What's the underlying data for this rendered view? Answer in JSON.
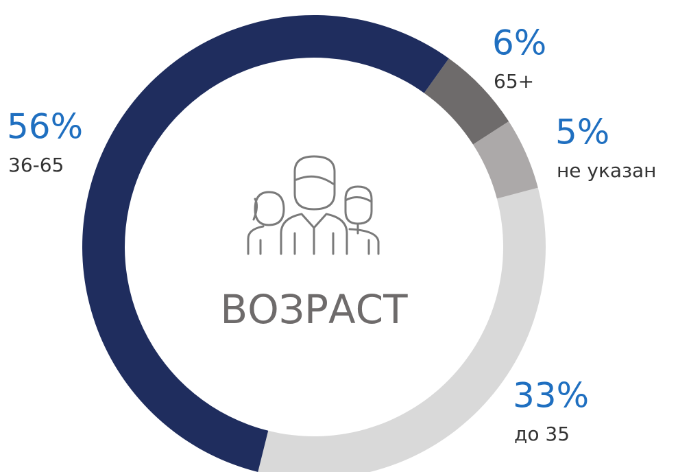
{
  "chart_data": {
    "type": "donut",
    "title": "ВОЗРАСТ",
    "categories": [
      "36-65",
      "65+",
      "не указан",
      "до 35"
    ],
    "values": [
      56,
      6,
      5,
      33
    ],
    "value_labels": [
      "56%",
      "6%",
      "5%",
      "33%"
    ],
    "colors": [
      "#1f2d5e",
      "#6e6b6b",
      "#aca9a9",
      "#d9d9d9"
    ]
  }
}
